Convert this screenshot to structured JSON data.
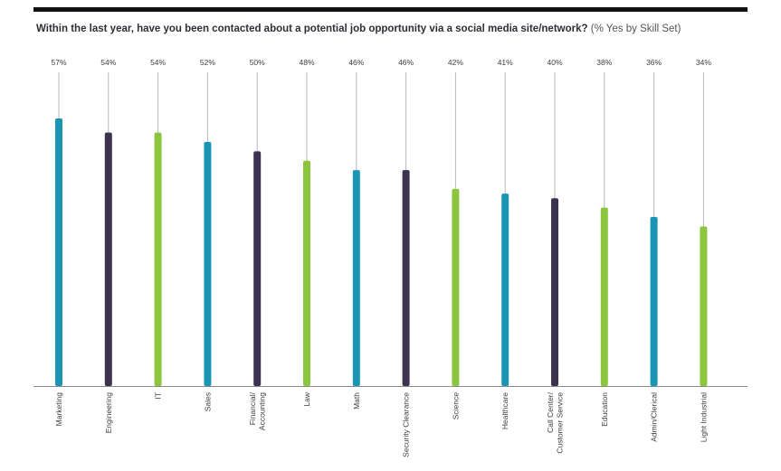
{
  "chart_data": {
    "type": "bar",
    "title": "Within the last year, have you been contacted about a potential job opportunity via a social media site/network?",
    "subtitle": "(% Yes by Skill Set)",
    "xlabel": "",
    "ylabel": "",
    "ylim": [
      0,
      57
    ],
    "grid": false,
    "categories": [
      "Marketing",
      "Engineering",
      "IT",
      "Sales",
      "Financial/ Accounting",
      "Law",
      "Math",
      "Security Clearance",
      "Science",
      "Healthcare",
      "Call Center/ Customer Service",
      "Education",
      "Admin/Clerical",
      "Light Industrial"
    ],
    "value_labels": [
      "57%",
      "54%",
      "54%",
      "52%",
      "50%",
      "48%",
      "46%",
      "46%",
      "42%",
      "41%",
      "40%",
      "38%",
      "36%",
      "34%"
    ],
    "values": [
      57,
      54,
      54,
      52,
      50,
      48,
      46,
      46,
      42,
      41,
      40,
      38,
      36,
      34
    ],
    "bar_colors": [
      "#1a96b4",
      "#3b3350",
      "#8cc63e",
      "#1a96b4",
      "#3b3350",
      "#8cc63e",
      "#1a96b4",
      "#3b3350",
      "#8cc63e",
      "#1a96b4",
      "#3b3350",
      "#8cc63e",
      "#1a96b4",
      "#8cc63e"
    ],
    "colors": {
      "teal": "#1a96b4",
      "navy": "#3b3350",
      "green": "#8cc63e",
      "leader": "#b8b8b8",
      "axis": "#8a8a8a",
      "label": "#3d3d3d"
    }
  }
}
